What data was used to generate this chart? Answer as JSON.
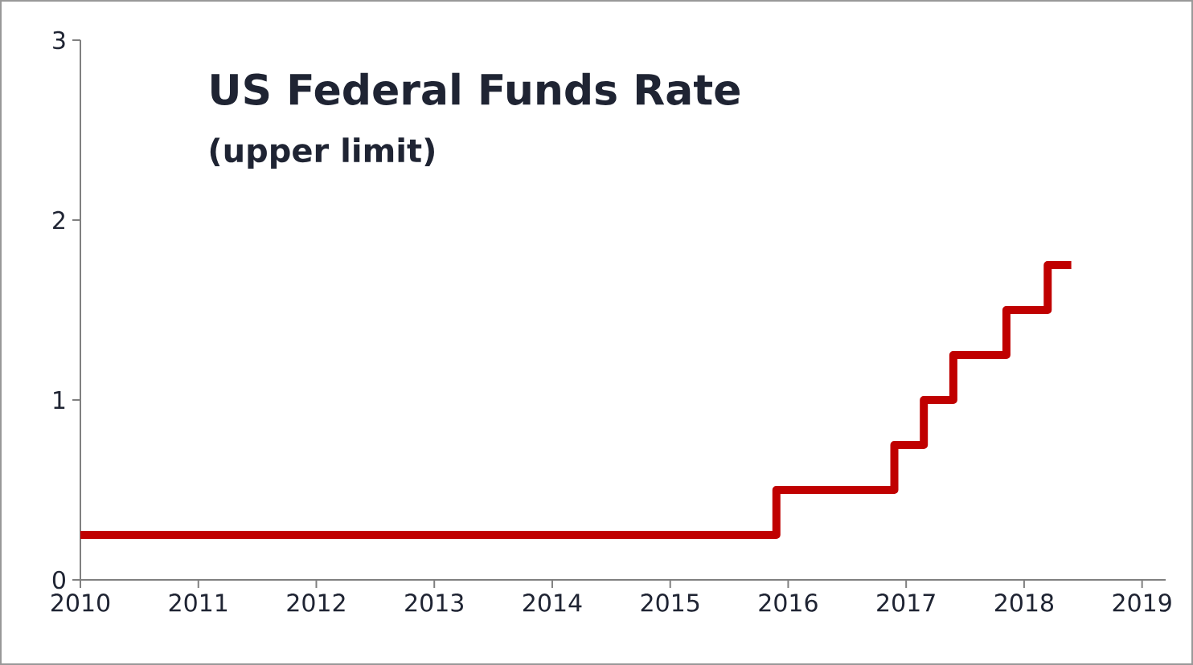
{
  "chart_data": {
    "type": "step",
    "title": "US Federal Funds Rate",
    "subtitle": "(upper limit)",
    "x": [
      2010,
      2015.9,
      2016.9,
      2017.15,
      2017.4,
      2017.85,
      2018.2,
      2018.4
    ],
    "values": [
      0.25,
      0.5,
      0.75,
      1,
      1.25,
      1.5,
      1.75,
      1.75
    ],
    "color": "#c00000",
    "line_style": "solid",
    "xlim": [
      2010,
      2019.2
    ],
    "xticks": [
      2010,
      2011,
      2012,
      2013,
      2014,
      2015,
      2016,
      2017,
      2018,
      2019
    ],
    "ylim": [
      0,
      3
    ],
    "yticks": [
      0,
      1,
      2,
      3
    ]
  }
}
